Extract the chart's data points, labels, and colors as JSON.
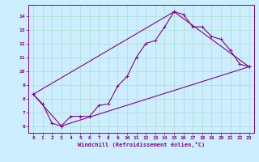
{
  "xlabel": "Windchill (Refroidissement éolien,°C)",
  "ylabel": "",
  "background_color": "#cceeff",
  "grid_color": "#aaddcc",
  "line_color": "#880088",
  "x_ticks": [
    0,
    1,
    2,
    3,
    4,
    5,
    6,
    7,
    8,
    9,
    10,
    11,
    12,
    13,
    14,
    15,
    16,
    17,
    18,
    19,
    20,
    21,
    22,
    23
  ],
  "y_ticks": [
    6,
    7,
    8,
    9,
    10,
    11,
    12,
    13,
    14
  ],
  "xlim": [
    -0.5,
    23.5
  ],
  "ylim": [
    5.5,
    14.8
  ],
  "line1_x": [
    0,
    1,
    2,
    3,
    4,
    5,
    6,
    7,
    8,
    9,
    10,
    11,
    12,
    13,
    14,
    15,
    16,
    17,
    18,
    19,
    20,
    21,
    22,
    23
  ],
  "line1_y": [
    8.3,
    7.6,
    6.2,
    6.0,
    6.7,
    6.7,
    6.7,
    7.5,
    7.6,
    8.9,
    9.6,
    11.0,
    12.0,
    12.2,
    13.2,
    14.3,
    14.1,
    13.2,
    13.2,
    12.5,
    12.3,
    11.5,
    10.5,
    10.3
  ],
  "line2_x": [
    0,
    3,
    23
  ],
  "line2_y": [
    8.3,
    6.0,
    10.3
  ],
  "line3_x": [
    0,
    15,
    23
  ],
  "line3_y": [
    8.3,
    14.3,
    10.3
  ]
}
